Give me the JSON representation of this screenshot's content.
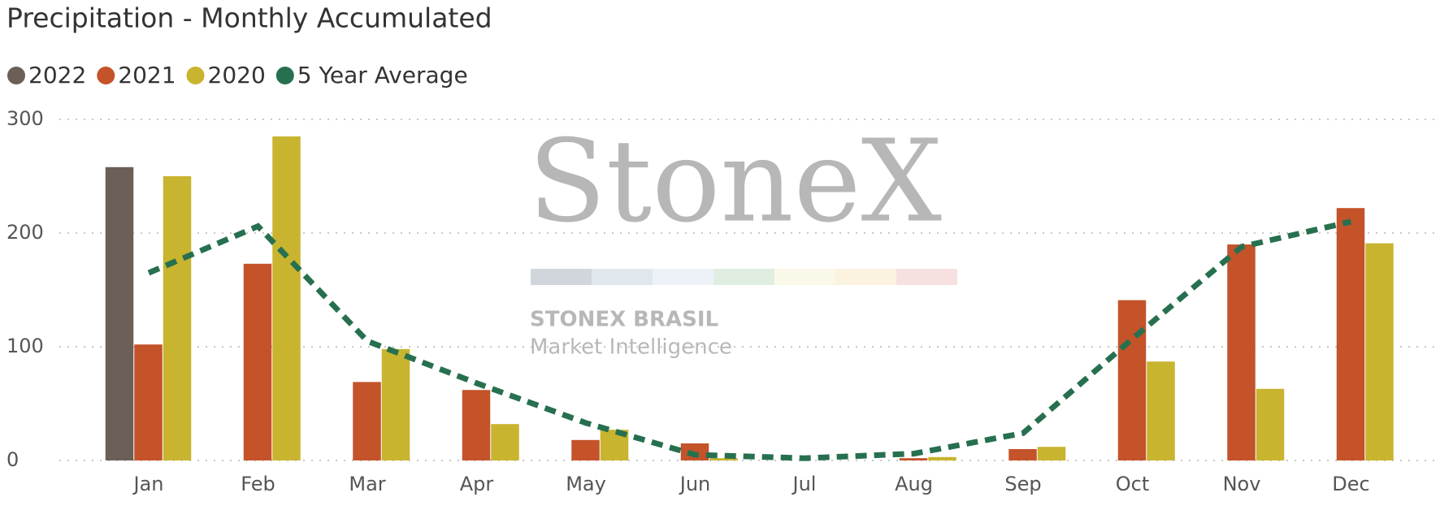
{
  "chart_data": {
    "type": "bar",
    "title": "Precipitation - Monthly Accumulated",
    "watermark": [
      "StoneX",
      "STONEX BRASIL",
      "Market Intelligence"
    ],
    "categories": [
      "Jan",
      "Feb",
      "Mar",
      "Apr",
      "May",
      "Jun",
      "Jul",
      "Aug",
      "Sep",
      "Oct",
      "Nov",
      "Dec"
    ],
    "series": [
      {
        "name": "2022",
        "color": "#6b5f57",
        "values": [
          258,
          null,
          null,
          null,
          null,
          null,
          null,
          null,
          null,
          null,
          null,
          null
        ]
      },
      {
        "name": "2021",
        "color": "#c4532a",
        "values": [
          102,
          173,
          69,
          62,
          18,
          15,
          0,
          2,
          10,
          141,
          190,
          222
        ]
      },
      {
        "name": "2020",
        "color": "#c8b42f",
        "values": [
          250,
          285,
          98,
          32,
          27,
          2,
          0,
          3,
          12,
          87,
          63,
          191
        ]
      },
      {
        "name": "5 Year Average",
        "color": "#27704f",
        "kind": "line",
        "values": [
          165,
          206,
          105,
          68,
          33,
          5,
          2,
          6,
          24,
          107,
          188,
          210
        ]
      }
    ],
    "ylim": [
      0,
      300
    ],
    "yticks": [
      0,
      100,
      200,
      300
    ],
    "grid": true
  }
}
